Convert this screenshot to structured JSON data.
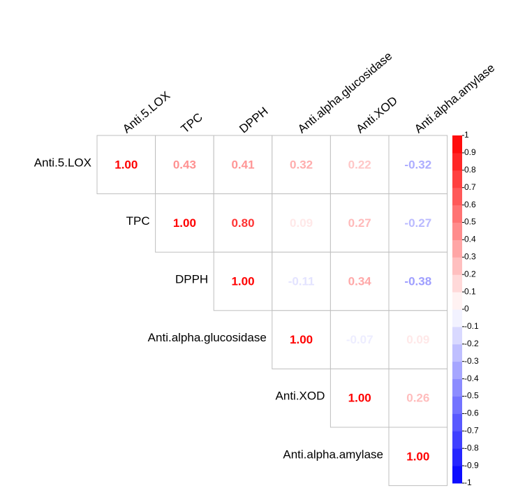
{
  "chart_data": {
    "type": "corrplot",
    "variables": [
      "Anti.5.LOX",
      "TPC",
      "DPPH",
      "Anti.alpha.glucosidase",
      "Anti.XOD",
      "Anti.alpha.amylase"
    ],
    "values": [
      [
        1,
        0.43,
        0.41,
        0.32,
        0.22,
        -0.32
      ],
      [
        null,
        1,
        0.8,
        0.09,
        0.27,
        -0.27
      ],
      [
        null,
        null,
        1,
        -0.11,
        0.34,
        -0.38
      ],
      [
        null,
        null,
        null,
        1,
        -0.07,
        0.09
      ],
      [
        null,
        null,
        null,
        null,
        1,
        0.26
      ],
      [
        null,
        null,
        null,
        null,
        null,
        1
      ]
    ],
    "value_labels": [
      [
        "1.00",
        "0.43",
        "0.41",
        "0.32",
        "0.22",
        "-0.32"
      ],
      [
        null,
        "1.00",
        "0.80",
        "0.09",
        "0.27",
        "-0.27"
      ],
      [
        null,
        null,
        "1.00",
        "-0.11",
        "0.34",
        "-0.38"
      ],
      [
        null,
        null,
        null,
        "1.00",
        "-0.07",
        "0.09"
      ],
      [
        null,
        null,
        null,
        null,
        "1.00",
        "0.26"
      ],
      [
        null,
        null,
        null,
        null,
        null,
        "1.00"
      ]
    ],
    "colormap": [
      "#0000FF",
      "#FFFFFF",
      "#FF0000"
    ],
    "clim": [
      -1,
      1
    ],
    "colorbar_ticks": [
      1,
      0.9,
      0.8,
      0.7,
      0.6,
      0.5,
      0.4,
      0.3,
      0.2,
      0.1,
      0,
      -0.1,
      -0.2,
      -0.3,
      -0.4,
      -0.5,
      -0.6,
      -0.7,
      -0.8,
      -0.9,
      -1
    ]
  }
}
